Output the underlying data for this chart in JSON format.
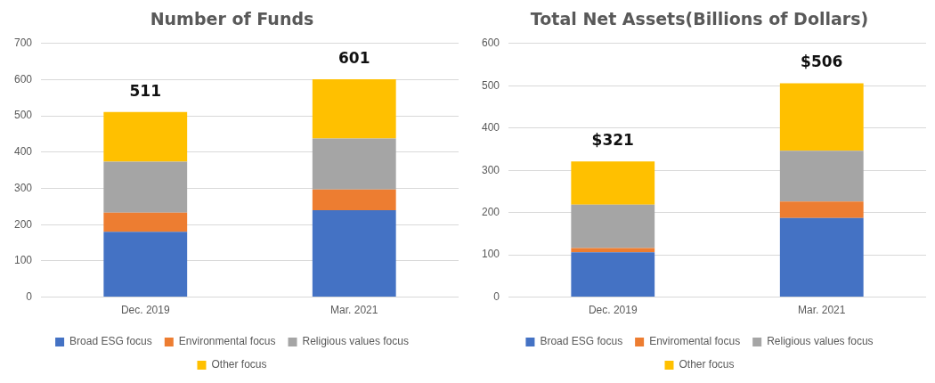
{
  "chart_data": [
    {
      "type": "bar",
      "title": "Number of Funds",
      "categories": [
        "Dec. 2019",
        "Mar. 2021"
      ],
      "stacked": true,
      "series": [
        {
          "name": "Broad ESG focus",
          "color": "#4472c4",
          "values": [
            180,
            240
          ]
        },
        {
          "name": "Environmental focus",
          "color": "#ed7d31",
          "values": [
            53,
            57
          ]
        },
        {
          "name": "Religious values focus",
          "color": "#a5a5a5",
          "values": [
            141,
            141
          ]
        },
        {
          "name": "Other focus",
          "color": "#ffc000",
          "values": [
            137,
            163
          ]
        }
      ],
      "totals": [
        "511",
        "601"
      ],
      "ylim": [
        0,
        700
      ],
      "yticks": [
        0,
        100,
        200,
        300,
        400,
        500,
        600,
        700
      ],
      "grid": "y",
      "legend": "bottom"
    },
    {
      "type": "bar",
      "title": "Total Net Assets(Billions of Dollars)",
      "categories": [
        "Dec. 2019",
        "Mar. 2021"
      ],
      "stacked": true,
      "series": [
        {
          "name": "Broad ESG focus",
          "color": "#4472c4",
          "values": [
            106,
            187
          ]
        },
        {
          "name": "Enviromental focus",
          "color": "#ed7d31",
          "values": [
            10,
            39
          ]
        },
        {
          "name": "Religious values focus",
          "color": "#a5a5a5",
          "values": [
            103,
            120
          ]
        },
        {
          "name": "Other focus",
          "color": "#ffc000",
          "values": [
            102,
            160
          ]
        }
      ],
      "totals": [
        "$321",
        "$506"
      ],
      "ylim": [
        0,
        600
      ],
      "yticks": [
        0,
        100,
        200,
        300,
        400,
        500,
        600
      ],
      "grid": "y",
      "legend": "bottom"
    }
  ]
}
